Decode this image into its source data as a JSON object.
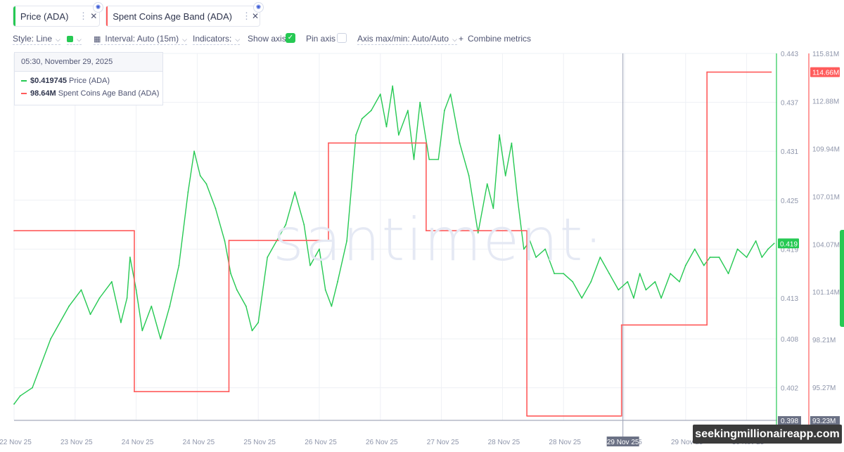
{
  "metrics": [
    {
      "label": "Price (ADA)",
      "color": "#26c953",
      "menu_icon": "vertical-dots-icon",
      "close_icon": "close-icon",
      "settings_icon": "gear-icon"
    },
    {
      "label": "Spent Coins Age Band (ADA)",
      "color": "#ff5b5b",
      "menu_icon": "vertical-dots-icon",
      "close_icon": "close-icon",
      "settings_icon": "gear-icon"
    }
  ],
  "toolbar": {
    "style": "Style: Line",
    "interval": "Interval: Auto (15m)",
    "indicators": "Indicators:",
    "show_axis": "Show axis",
    "show_axis_checked": true,
    "pin_axis": "Pin axis",
    "pin_axis_checked": false,
    "axis_maxmin": "Axis max/min: Auto/Auto",
    "combine": "Combine metrics"
  },
  "tooltip": {
    "date": "05:30, November 29, 2025",
    "price_value": "$0.419745",
    "price_label": "Price (ADA)",
    "spent_value": "98.64M",
    "spent_label": "Spent Coins Age Band (ADA)"
  },
  "watermark": "santiment·",
  "credit": "seekingmillionaireapp.com",
  "chart_data": {
    "type": "line",
    "x": [
      "22 Nov 25",
      "23 Nov 25",
      "24 Nov 25",
      "24 Nov 25",
      "25 Nov 25",
      "26 Nov 25",
      "26 Nov 25",
      "27 Nov 25",
      "28 Nov 25",
      "28 Nov 25",
      "29 Nov 25",
      "29 Nov 25",
      "30 Nov 25"
    ],
    "series": [
      {
        "name": "Price (ADA)",
        "color": "#26c953",
        "axis": "left",
        "x": [
          0,
          0.1,
          0.3,
          0.6,
          0.9,
          1.1,
          1.25,
          1.4,
          1.6,
          1.75,
          1.85,
          1.9,
          2.0,
          2.1,
          2.25,
          2.4,
          2.55,
          2.7,
          2.85,
          2.95,
          3.05,
          3.15,
          3.3,
          3.45,
          3.55,
          3.65,
          3.8,
          3.9,
          4.0,
          4.15,
          4.3,
          4.45,
          4.6,
          4.75,
          4.85,
          5.0,
          5.1,
          5.2,
          5.3,
          5.45,
          5.6,
          5.7,
          5.85,
          6.0,
          6.1,
          6.2,
          6.3,
          6.45,
          6.55,
          6.65,
          6.8,
          6.95,
          7.05,
          7.15,
          7.3,
          7.45,
          7.6,
          7.75,
          7.85,
          7.95,
          8.05,
          8.15,
          8.25,
          8.35,
          8.45,
          8.55,
          8.7,
          8.85,
          9.0,
          9.15,
          9.3,
          9.45,
          9.6,
          9.75,
          9.9,
          10.05,
          10.15,
          10.25,
          10.35,
          10.5,
          10.6,
          10.75,
          10.9,
          11.0,
          11.15,
          11.3,
          11.4,
          11.55,
          11.7,
          11.85,
          12.0,
          12.15,
          12.25,
          12.35,
          12.45
        ],
        "values": [
          0.4,
          0.401,
          0.402,
          0.408,
          0.412,
          0.414,
          0.411,
          0.413,
          0.415,
          0.41,
          0.413,
          0.418,
          0.414,
          0.409,
          0.412,
          0.408,
          0.412,
          0.417,
          0.426,
          0.431,
          0.428,
          0.427,
          0.424,
          0.42,
          0.416,
          0.414,
          0.412,
          0.409,
          0.41,
          0.418,
          0.42,
          0.422,
          0.426,
          0.422,
          0.417,
          0.419,
          0.414,
          0.412,
          0.415,
          0.42,
          0.433,
          0.435,
          0.436,
          0.438,
          0.434,
          0.439,
          0.433,
          0.436,
          0.43,
          0.437,
          0.43,
          0.43,
          0.436,
          0.438,
          0.432,
          0.428,
          0.421,
          0.427,
          0.424,
          0.433,
          0.428,
          0.432,
          0.425,
          0.419,
          0.42,
          0.418,
          0.419,
          0.416,
          0.416,
          0.415,
          0.413,
          0.415,
          0.418,
          0.416,
          0.414,
          0.415,
          0.413,
          0.416,
          0.414,
          0.415,
          0.413,
          0.416,
          0.415,
          0.417,
          0.419,
          0.417,
          0.418,
          0.418,
          0.416,
          0.419,
          0.418,
          0.42,
          0.418,
          0.419,
          0.4197
        ]
      },
      {
        "name": "Spent Coins Age Band (ADA)",
        "color": "#ff5b5b",
        "axis": "right",
        "step": true,
        "x": [
          0,
          1.97,
          1.97,
          3.52,
          3.52,
          5.15,
          5.15,
          6.75,
          6.75,
          8.4,
          8.4,
          9.95,
          9.95,
          11.35,
          11.35,
          12.4
        ],
        "values": [
          104.9,
          104.9,
          95.0,
          95.0,
          104.3,
          104.3,
          110.3,
          110.3,
          104.9,
          104.9,
          93.5,
          93.5,
          99.1,
          99.1,
          114.66,
          114.66
        ]
      }
    ],
    "y_left": {
      "ticks": [
        "0.443",
        "0.437",
        "0.431",
        "0.425",
        "0.419",
        "0.413",
        "0.408",
        "0.402",
        "0.398"
      ],
      "min": 0.398,
      "max": 0.443,
      "current": "0.419"
    },
    "y_right": {
      "ticks": [
        "115.81M",
        "114.66M",
        "112.88M",
        "109.94M",
        "107.01M",
        "104.07M",
        "101.14M",
        "98.21M",
        "95.27M",
        "93.23M"
      ],
      "min": 93.23,
      "max": 115.81,
      "current": "114.66M"
    },
    "crosshair_label": "29 Nov 25",
    "grid": true,
    "legend": "top"
  }
}
